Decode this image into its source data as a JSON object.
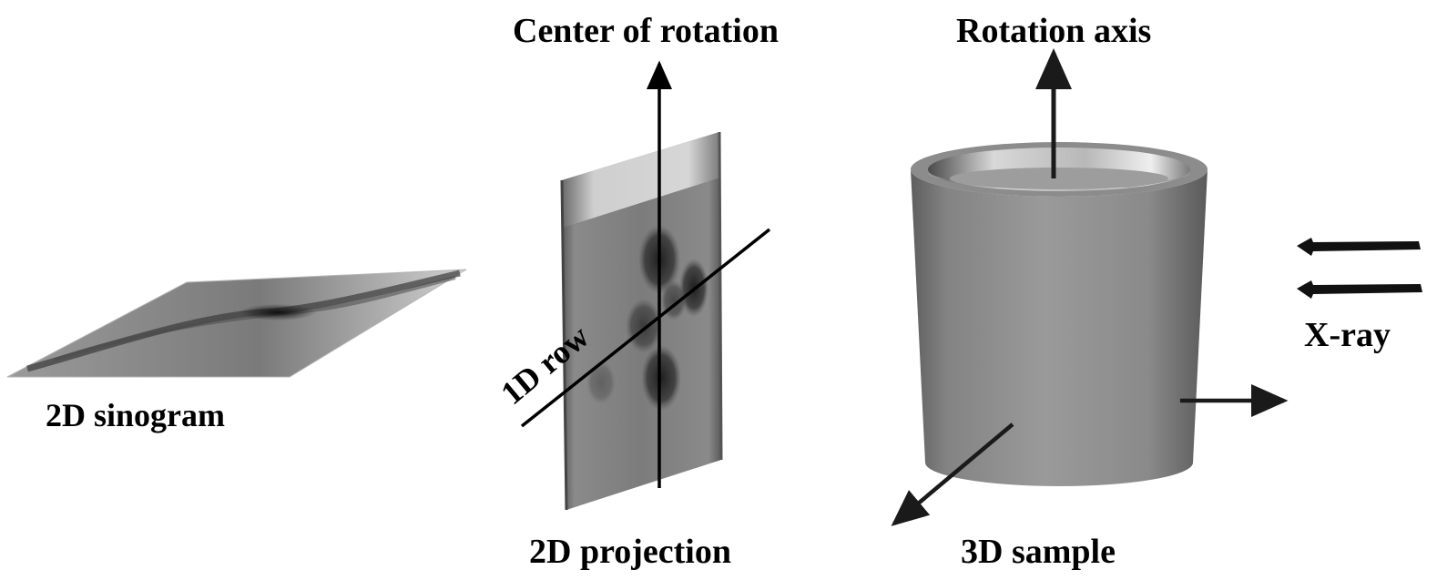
{
  "labels": {
    "sinogram": "2D sinogram",
    "center_of_rotation": "Center of rotation",
    "one_d_row": "1D row",
    "projection": "2D projection",
    "rotation_axis": "Rotation axis",
    "sample": "3D sample",
    "xray": "X-ray"
  },
  "colors": {
    "text": "#000000",
    "background": "#ffffff",
    "cylinder_gray": "#8a8a8a",
    "arrow": "#1a1a1a"
  }
}
